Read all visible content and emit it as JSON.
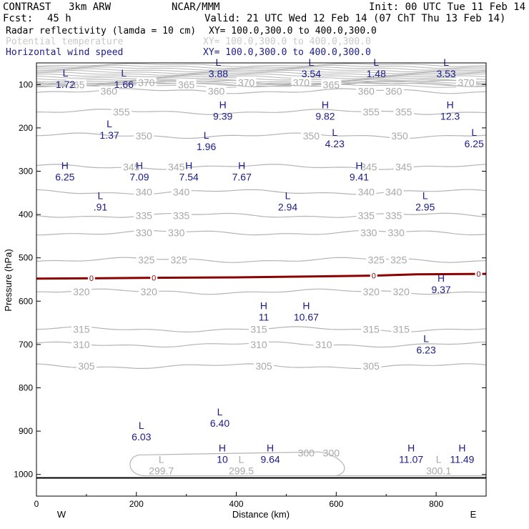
{
  "header": {
    "model": "CONTRAST",
    "resolution": "3km ARW",
    "center": "NCAR/MMM",
    "init": "Init: 00 UTC Tue 11 Feb 14",
    "fcst_label": "Fcst:",
    "fcst_value": "45 h",
    "valid": "Valid: 21 UTC Wed 12 Feb 14 (07 ChT Thu 13 Feb 14)"
  },
  "fields": [
    {
      "name": "Radar reflectivity (lamda = 10 cm)",
      "xy": "XY= 100.0,300.0 to 400.0,300.0",
      "color": "#000000"
    },
    {
      "name": "Potential temperature",
      "xy": "XY= 100.0,300.0 to 400.0,300.0",
      "color": "#c8c8c8"
    },
    {
      "name": "Horizontal wind speed",
      "xy": "XY= 100.0,300.0 to 400.0,300.0",
      "color": "#1a1a8c"
    }
  ],
  "colors": {
    "theta": "#b4b4b4",
    "wind_label": "#1a1a8c",
    "reflectivity": "#8b0000",
    "ground": "#000000"
  },
  "chart_data": {
    "type": "cross-section",
    "xlabel": "Distance (km)",
    "ylabel": "Pressure (hPa)",
    "xlim": [
      0,
      900
    ],
    "ylim": [
      1050,
      50
    ],
    "x_ticks": [
      "0",
      "200",
      "400",
      "600",
      "800"
    ],
    "y_ticks": [
      "100",
      "200",
      "300",
      "400",
      "500",
      "600",
      "700",
      "800",
      "900",
      "1000"
    ],
    "x_end_labels": {
      "left": "W",
      "right": "E"
    },
    "ground_pressure": 1008,
    "reflectivity_line": {
      "label": "0",
      "x": [
        0,
        120,
        230,
        400,
        550,
        680,
        760,
        900
      ],
      "p": [
        548,
        547,
        546,
        545,
        543,
        541,
        538,
        537
      ],
      "label_x": [
        110,
        235,
        675,
        885
      ]
    },
    "theta_contours": [
      {
        "value": "370",
        "p": 95,
        "labels_x": [
          220,
          420,
          530,
          860
        ]
      },
      {
        "value": "365",
        "p": 100,
        "labels_x": [
          80,
          300,
          590
        ]
      },
      {
        "value": "360",
        "p": 115,
        "labels_x": [
          145,
          360,
          660,
          715
        ]
      },
      {
        "value": "355",
        "p": 163,
        "labels_x": [
          170,
          670,
          735
        ]
      },
      {
        "value": "350",
        "p": 218,
        "labels_x": [
          215,
          550,
          727
        ]
      },
      {
        "value": "345",
        "p": 290,
        "labels_x": [
          190,
          280,
          665,
          735
        ]
      },
      {
        "value": "340",
        "p": 348,
        "labels_x": [
          215,
          290,
          660,
          715
        ]
      },
      {
        "value": "335",
        "p": 402,
        "labels_x": [
          215,
          290,
          660,
          715
        ]
      },
      {
        "value": "330",
        "p": 442,
        "labels_x": [
          215,
          280,
          665,
          720
        ]
      },
      {
        "value": "325",
        "p": 505,
        "labels_x": [
          220,
          285,
          680,
          725
        ]
      },
      {
        "value": "320",
        "p": 578,
        "labels_x": [
          90,
          225,
          670,
          730
        ]
      },
      {
        "value": "315",
        "p": 665,
        "labels_x": [
          90,
          445,
          670,
          730
        ]
      },
      {
        "value": "310",
        "p": 700,
        "labels_x": [
          90,
          445,
          575
        ]
      },
      {
        "value": "305",
        "p": 750,
        "labels_x": [
          100,
          455,
          670
        ]
      },
      {
        "value": "300",
        "p": 950,
        "labels_x": [
          540,
          590
        ]
      }
    ],
    "theta_minima": [
      {
        "x": 250,
        "p": 980,
        "mark": "L",
        "value": "299.7"
      },
      {
        "x": 410,
        "p": 980,
        "mark": "L",
        "value": "299.5"
      },
      {
        "x": 805,
        "p": 980,
        "mark": "L",
        "value": "300.1"
      }
    ],
    "wind_extrema": [
      {
        "x": 58,
        "p": 85,
        "mark": "L",
        "value": "1.72"
      },
      {
        "x": 175,
        "p": 85,
        "mark": "L",
        "value": "1.66"
      },
      {
        "x": 364,
        "p": 60,
        "mark": "L",
        "value": "3.88"
      },
      {
        "x": 550,
        "p": 60,
        "mark": "L",
        "value": "3.54"
      },
      {
        "x": 680,
        "p": 60,
        "mark": "L",
        "value": "1.48"
      },
      {
        "x": 820,
        "p": 60,
        "mark": "L",
        "value": "3.53"
      },
      {
        "x": 373,
        "p": 158,
        "mark": "H",
        "value": "9.39"
      },
      {
        "x": 578,
        "p": 158,
        "mark": "H",
        "value": "9.82"
      },
      {
        "x": 828,
        "p": 158,
        "mark": "H",
        "value": "12.3"
      },
      {
        "x": 146,
        "p": 202,
        "mark": "L",
        "value": "1.37"
      },
      {
        "x": 340,
        "p": 228,
        "mark": "L",
        "value": "1.96"
      },
      {
        "x": 597,
        "p": 222,
        "mark": "L",
        "value": "4.23"
      },
      {
        "x": 876,
        "p": 222,
        "mark": "L",
        "value": "6.25"
      },
      {
        "x": 57,
        "p": 298,
        "mark": "H",
        "value": "6.25"
      },
      {
        "x": 206,
        "p": 298,
        "mark": "H",
        "value": "7.09"
      },
      {
        "x": 305,
        "p": 298,
        "mark": "H",
        "value": "7.54"
      },
      {
        "x": 411,
        "p": 298,
        "mark": "H",
        "value": "7.67"
      },
      {
        "x": 646,
        "p": 298,
        "mark": "H",
        "value": "9.41"
      },
      {
        "x": 128,
        "p": 368,
        "mark": "L",
        "value": ".91"
      },
      {
        "x": 503,
        "p": 368,
        "mark": "L",
        "value": "2.94"
      },
      {
        "x": 778,
        "p": 368,
        "mark": "L",
        "value": "2.95"
      },
      {
        "x": 810,
        "p": 558,
        "mark": "H",
        "value": "9.37"
      },
      {
        "x": 455,
        "p": 622,
        "mark": "H",
        "value": "11"
      },
      {
        "x": 540,
        "p": 622,
        "mark": "H",
        "value": "10.67"
      },
      {
        "x": 780,
        "p": 698,
        "mark": "L",
        "value": "6.23"
      },
      {
        "x": 367,
        "p": 867,
        "mark": "L",
        "value": "6.40"
      },
      {
        "x": 210,
        "p": 898,
        "mark": "L",
        "value": "6.03"
      },
      {
        "x": 372,
        "p": 950,
        "mark": "H",
        "value": "10"
      },
      {
        "x": 468,
        "p": 950,
        "mark": "H",
        "value": "9.64"
      },
      {
        "x": 750,
        "p": 950,
        "mark": "H",
        "value": "11.07"
      },
      {
        "x": 852,
        "p": 950,
        "mark": "H",
        "value": "11.49"
      }
    ]
  }
}
